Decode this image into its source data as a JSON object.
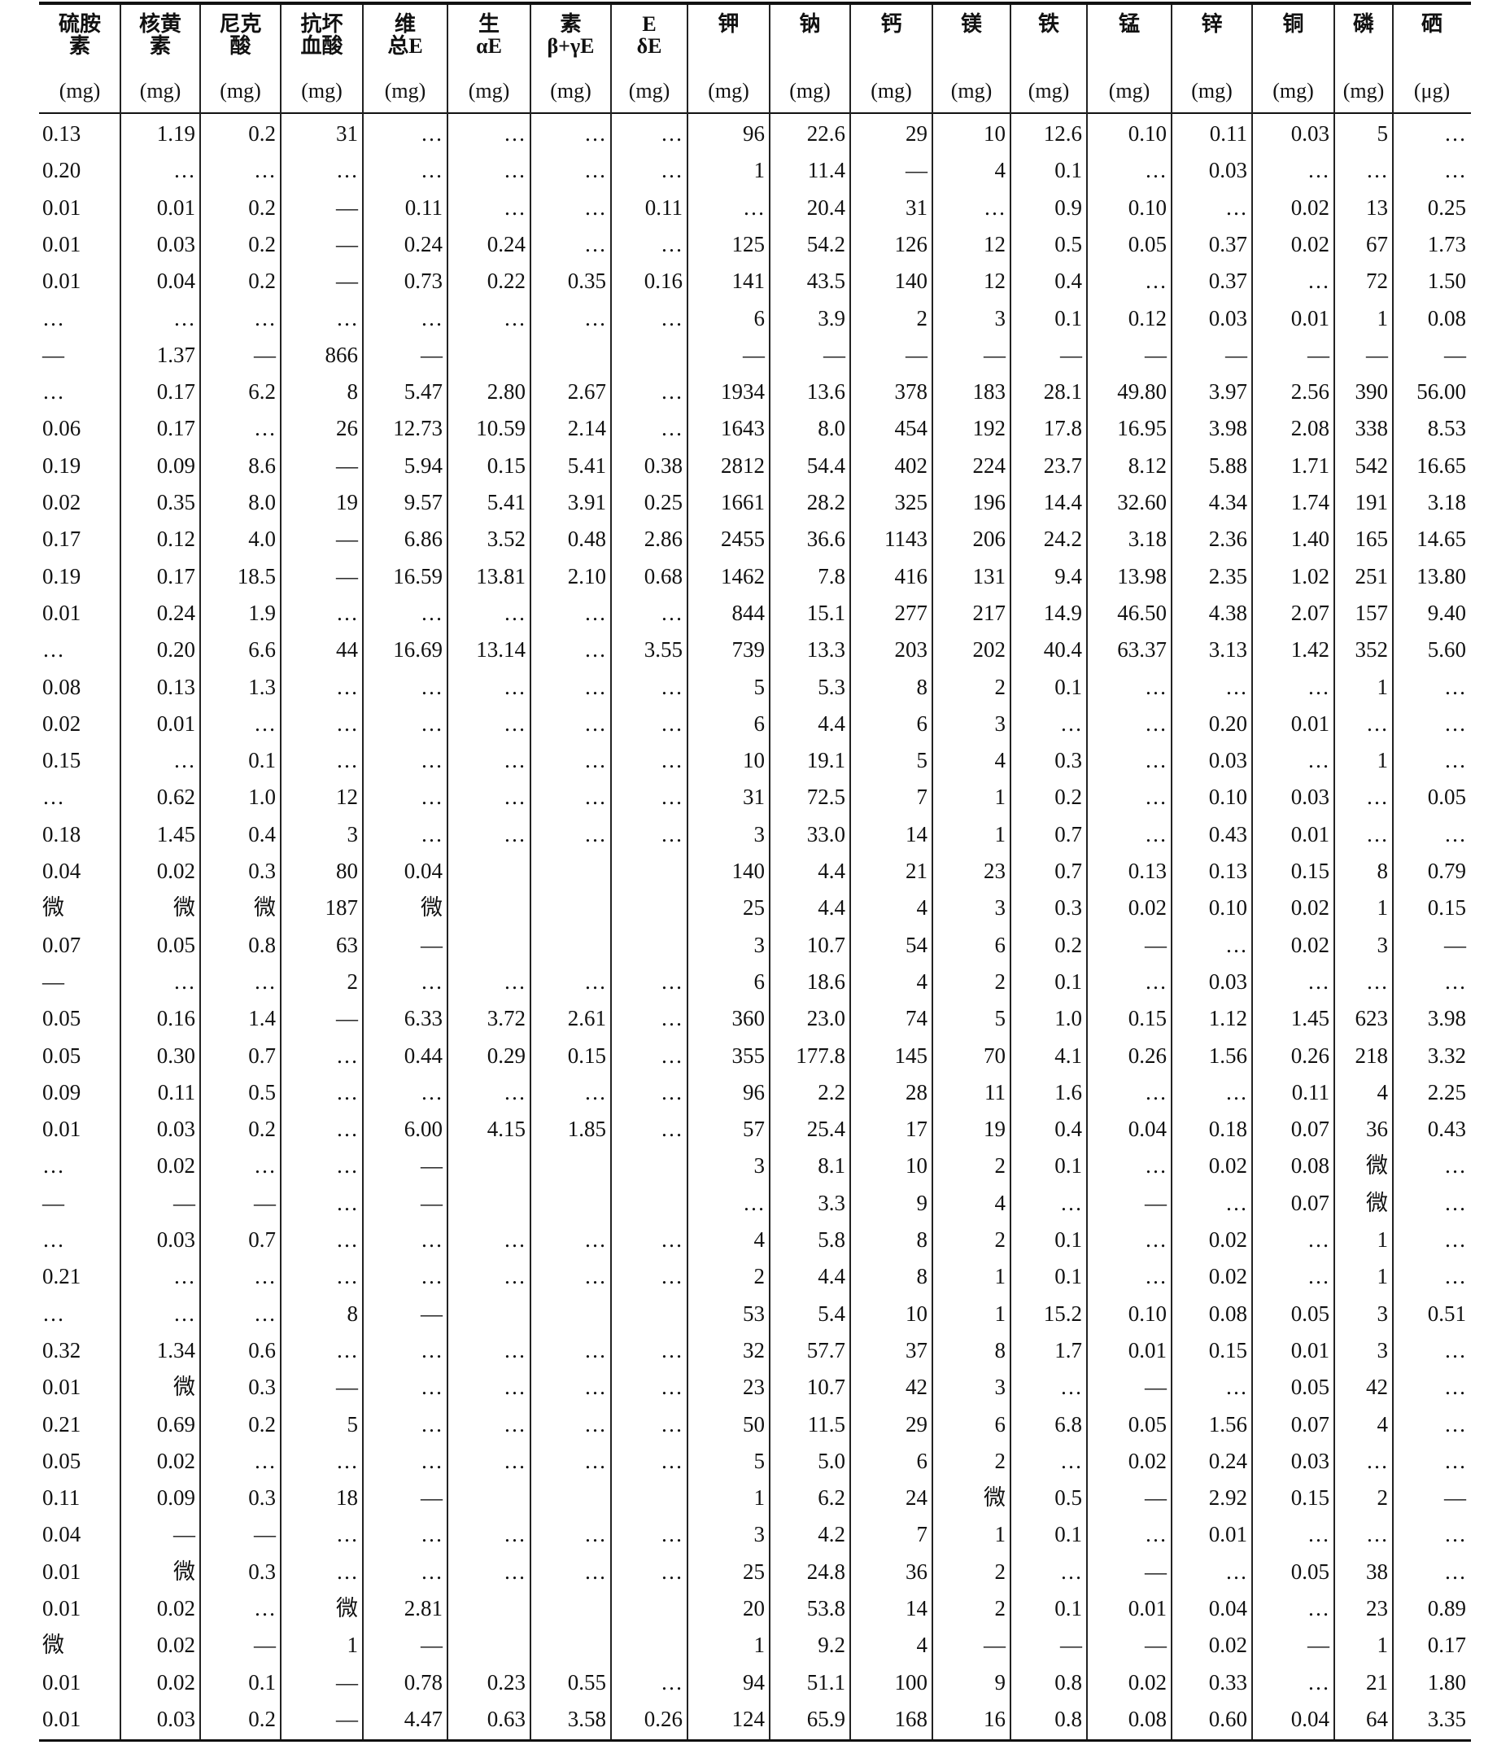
{
  "table": {
    "columns": [
      {
        "lines": [
          "硫胺",
          "素"
        ],
        "unit": "(mg)"
      },
      {
        "lines": [
          "核黄",
          "素"
        ],
        "unit": "(mg)"
      },
      {
        "lines": [
          "尼克",
          "酸"
        ],
        "unit": "(mg)"
      },
      {
        "lines": [
          "抗坏",
          "血酸"
        ],
        "unit": "(mg)"
      },
      {
        "lines": [
          "维",
          "总E"
        ],
        "unit": "(mg)"
      },
      {
        "lines": [
          "生",
          "αE"
        ],
        "unit": "(mg)"
      },
      {
        "lines": [
          "素",
          "β+γE"
        ],
        "unit": "(mg)"
      },
      {
        "lines": [
          "E",
          "δE"
        ],
        "unit": "(mg)"
      },
      {
        "lines": [
          "钾"
        ],
        "unit": "(mg)"
      },
      {
        "lines": [
          "钠"
        ],
        "unit": "(mg)"
      },
      {
        "lines": [
          "钙"
        ],
        "unit": "(mg)"
      },
      {
        "lines": [
          "镁"
        ],
        "unit": "(mg)"
      },
      {
        "lines": [
          "铁"
        ],
        "unit": "(mg)"
      },
      {
        "lines": [
          "锰"
        ],
        "unit": "(mg)"
      },
      {
        "lines": [
          "锌"
        ],
        "unit": "(mg)"
      },
      {
        "lines": [
          "铜"
        ],
        "unit": "(mg)"
      },
      {
        "lines": [
          "磷"
        ],
        "unit": "(mg)"
      },
      {
        "lines": [
          "硒"
        ],
        "unit": "(μg)"
      }
    ],
    "rows": [
      [
        "0.13",
        "1.19",
        "0.2",
        "31",
        "…",
        "…",
        "…",
        "…",
        "96",
        "22.6",
        "29",
        "10",
        "12.6",
        "0.10",
        "0.11",
        "0.03",
        "5",
        "…"
      ],
      [
        "0.20",
        "…",
        "…",
        "…",
        "…",
        "…",
        "…",
        "…",
        "1",
        "11.4",
        "—",
        "4",
        "0.1",
        "…",
        "0.03",
        "…",
        "…",
        "…"
      ],
      [
        "0.01",
        "0.01",
        "0.2",
        "—",
        "0.11",
        "…",
        "…",
        "0.11",
        "…",
        "20.4",
        "31",
        "…",
        "0.9",
        "0.10",
        "…",
        "0.02",
        "13",
        "0.25"
      ],
      [
        "0.01",
        "0.03",
        "0.2",
        "—",
        "0.24",
        "0.24",
        "…",
        "…",
        "125",
        "54.2",
        "126",
        "12",
        "0.5",
        "0.05",
        "0.37",
        "0.02",
        "67",
        "1.73"
      ],
      [
        "0.01",
        "0.04",
        "0.2",
        "—",
        "0.73",
        "0.22",
        "0.35",
        "0.16",
        "141",
        "43.5",
        "140",
        "12",
        "0.4",
        "…",
        "0.37",
        "…",
        "72",
        "1.50"
      ],
      [
        "…",
        "…",
        "…",
        "…",
        "…",
        "…",
        "…",
        "…",
        "6",
        "3.9",
        "2",
        "3",
        "0.1",
        "0.12",
        "0.03",
        "0.01",
        "1",
        "0.08"
      ],
      [
        "—",
        "1.37",
        "—",
        "866",
        "—",
        null,
        null,
        null,
        "—",
        "—",
        "—",
        "—",
        "—",
        "—",
        "—",
        "—",
        "—",
        "—"
      ],
      [
        "…",
        "0.17",
        "6.2",
        "8",
        "5.47",
        "2.80",
        "2.67",
        "…",
        "1934",
        "13.6",
        "378",
        "183",
        "28.1",
        "49.80",
        "3.97",
        "2.56",
        "390",
        "56.00"
      ],
      [
        "0.06",
        "0.17",
        "…",
        "26",
        "12.73",
        "10.59",
        "2.14",
        "…",
        "1643",
        "8.0",
        "454",
        "192",
        "17.8",
        "16.95",
        "3.98",
        "2.08",
        "338",
        "8.53"
      ],
      [
        "0.19",
        "0.09",
        "8.6",
        "—",
        "5.94",
        "0.15",
        "5.41",
        "0.38",
        "2812",
        "54.4",
        "402",
        "224",
        "23.7",
        "8.12",
        "5.88",
        "1.71",
        "542",
        "16.65"
      ],
      [
        "0.02",
        "0.35",
        "8.0",
        "19",
        "9.57",
        "5.41",
        "3.91",
        "0.25",
        "1661",
        "28.2",
        "325",
        "196",
        "14.4",
        "32.60",
        "4.34",
        "1.74",
        "191",
        "3.18"
      ],
      [
        "0.17",
        "0.12",
        "4.0",
        "—",
        "6.86",
        "3.52",
        "0.48",
        "2.86",
        "2455",
        "36.6",
        "1143",
        "206",
        "24.2",
        "3.18",
        "2.36",
        "1.40",
        "165",
        "14.65"
      ],
      [
        "0.19",
        "0.17",
        "18.5",
        "—",
        "16.59",
        "13.81",
        "2.10",
        "0.68",
        "1462",
        "7.8",
        "416",
        "131",
        "9.4",
        "13.98",
        "2.35",
        "1.02",
        "251",
        "13.80"
      ],
      [
        "0.01",
        "0.24",
        "1.9",
        "…",
        "…",
        "…",
        "…",
        "…",
        "844",
        "15.1",
        "277",
        "217",
        "14.9",
        "46.50",
        "4.38",
        "2.07",
        "157",
        "9.40"
      ],
      [
        "…",
        "0.20",
        "6.6",
        "44",
        "16.69",
        "13.14",
        "…",
        "3.55",
        "739",
        "13.3",
        "203",
        "202",
        "40.4",
        "63.37",
        "3.13",
        "1.42",
        "352",
        "5.60"
      ],
      [
        "0.08",
        "0.13",
        "1.3",
        "…",
        "…",
        "…",
        "…",
        "…",
        "5",
        "5.3",
        "8",
        "2",
        "0.1",
        "…",
        "…",
        "…",
        "1",
        "…"
      ],
      [
        "0.02",
        "0.01",
        "…",
        "…",
        "…",
        "…",
        "…",
        "…",
        "6",
        "4.4",
        "6",
        "3",
        "…",
        "…",
        "0.20",
        "0.01",
        "…",
        "…"
      ],
      [
        "0.15",
        "…",
        "0.1",
        "…",
        "…",
        "…",
        "…",
        "…",
        "10",
        "19.1",
        "5",
        "4",
        "0.3",
        "…",
        "0.03",
        "…",
        "1",
        "…"
      ],
      [
        "…",
        "0.62",
        "1.0",
        "12",
        "…",
        "…",
        "…",
        "…",
        "31",
        "72.5",
        "7",
        "1",
        "0.2",
        "…",
        "0.10",
        "0.03",
        "…",
        "0.05"
      ],
      [
        "0.18",
        "1.45",
        "0.4",
        "3",
        "…",
        "…",
        "…",
        "…",
        "3",
        "33.0",
        "14",
        "1",
        "0.7",
        "…",
        "0.43",
        "0.01",
        "…",
        "…"
      ],
      [
        "0.04",
        "0.02",
        "0.3",
        "80",
        "0.04",
        null,
        null,
        null,
        "140",
        "4.4",
        "21",
        "23",
        "0.7",
        "0.13",
        "0.13",
        "0.15",
        "8",
        "0.79"
      ],
      [
        "微",
        "微",
        "微",
        "187",
        "微",
        null,
        null,
        null,
        "25",
        "4.4",
        "4",
        "3",
        "0.3",
        "0.02",
        "0.10",
        "0.02",
        "1",
        "0.15"
      ],
      [
        "0.07",
        "0.05",
        "0.8",
        "63",
        "—",
        null,
        null,
        null,
        "3",
        "10.7",
        "54",
        "6",
        "0.2",
        "—",
        "…",
        "0.02",
        "3",
        "—"
      ],
      [
        "—",
        "…",
        "…",
        "2",
        "…",
        "…",
        "…",
        "…",
        "6",
        "18.6",
        "4",
        "2",
        "0.1",
        "…",
        "0.03",
        "…",
        "…",
        "…"
      ],
      [
        "0.05",
        "0.16",
        "1.4",
        "—",
        "6.33",
        "3.72",
        "2.61",
        "…",
        "360",
        "23.0",
        "74",
        "5",
        "1.0",
        "0.15",
        "1.12",
        "1.45",
        "623",
        "3.98"
      ],
      [
        "0.05",
        "0.30",
        "0.7",
        "…",
        "0.44",
        "0.29",
        "0.15",
        "…",
        "355",
        "177.8",
        "145",
        "70",
        "4.1",
        "0.26",
        "1.56",
        "0.26",
        "218",
        "3.32"
      ],
      [
        "0.09",
        "0.11",
        "0.5",
        "…",
        "…",
        "…",
        "…",
        "…",
        "96",
        "2.2",
        "28",
        "11",
        "1.6",
        "…",
        "…",
        "0.11",
        "4",
        "2.25"
      ],
      [
        "0.01",
        "0.03",
        "0.2",
        "…",
        "6.00",
        "4.15",
        "1.85",
        "…",
        "57",
        "25.4",
        "17",
        "19",
        "0.4",
        "0.04",
        "0.18",
        "0.07",
        "36",
        "0.43"
      ],
      [
        "…",
        "0.02",
        "…",
        "…",
        "—",
        null,
        null,
        null,
        "3",
        "8.1",
        "10",
        "2",
        "0.1",
        "…",
        "0.02",
        "0.08",
        "微",
        "…"
      ],
      [
        "—",
        "—",
        "—",
        "…",
        "—",
        null,
        null,
        null,
        "…",
        "3.3",
        "9",
        "4",
        "…",
        "—",
        "…",
        "0.07",
        "微",
        "…"
      ],
      [
        "…",
        "0.03",
        "0.7",
        "…",
        "…",
        "…",
        "…",
        "…",
        "4",
        "5.8",
        "8",
        "2",
        "0.1",
        "…",
        "0.02",
        "…",
        "1",
        "…"
      ],
      [
        "0.21",
        "…",
        "…",
        "…",
        "…",
        "…",
        "…",
        "…",
        "2",
        "4.4",
        "8",
        "1",
        "0.1",
        "…",
        "0.02",
        "…",
        "1",
        "…"
      ],
      [
        "…",
        "…",
        "…",
        "8",
        "—",
        null,
        null,
        null,
        "53",
        "5.4",
        "10",
        "1",
        "15.2",
        "0.10",
        "0.08",
        "0.05",
        "3",
        "0.51"
      ],
      [
        "0.32",
        "1.34",
        "0.6",
        "…",
        "…",
        "…",
        "…",
        "…",
        "32",
        "57.7",
        "37",
        "8",
        "1.7",
        "0.01",
        "0.15",
        "0.01",
        "3",
        "…"
      ],
      [
        "0.01",
        "微",
        "0.3",
        "—",
        "…",
        "…",
        "…",
        "…",
        "23",
        "10.7",
        "42",
        "3",
        "…",
        "—",
        "…",
        "0.05",
        "42",
        "…"
      ],
      [
        "0.21",
        "0.69",
        "0.2",
        "5",
        "…",
        "…",
        "…",
        "…",
        "50",
        "11.5",
        "29",
        "6",
        "6.8",
        "0.05",
        "1.56",
        "0.07",
        "4",
        "…"
      ],
      [
        "0.05",
        "0.02",
        "…",
        "…",
        "…",
        "…",
        "…",
        "…",
        "5",
        "5.0",
        "6",
        "2",
        "…",
        "0.02",
        "0.24",
        "0.03",
        "…",
        "…"
      ],
      [
        "0.11",
        "0.09",
        "0.3",
        "18",
        "—",
        null,
        null,
        null,
        "1",
        "6.2",
        "24",
        "微",
        "0.5",
        "—",
        "2.92",
        "0.15",
        "2",
        "—"
      ],
      [
        "0.04",
        "—",
        "—",
        "…",
        "…",
        "…",
        "…",
        "…",
        "3",
        "4.2",
        "7",
        "1",
        "0.1",
        "…",
        "0.01",
        "…",
        "…",
        "…"
      ],
      [
        "0.01",
        "微",
        "0.3",
        "…",
        "…",
        "…",
        "…",
        "…",
        "25",
        "24.8",
        "36",
        "2",
        "…",
        "—",
        "…",
        "0.05",
        "38",
        "…"
      ],
      [
        "0.01",
        "0.02",
        "…",
        "微",
        "2.81",
        null,
        null,
        null,
        "20",
        "53.8",
        "14",
        "2",
        "0.1",
        "0.01",
        "0.04",
        "…",
        "23",
        "0.89"
      ],
      [
        "微",
        "0.02",
        "—",
        "1",
        "—",
        null,
        null,
        null,
        "1",
        "9.2",
        "4",
        "—",
        "—",
        "—",
        "0.02",
        "—",
        "1",
        "0.17"
      ],
      [
        "0.01",
        "0.02",
        "0.1",
        "—",
        "0.78",
        "0.23",
        "0.55",
        "…",
        "94",
        "51.1",
        "100",
        "9",
        "0.8",
        "0.02",
        "0.33",
        "…",
        "21",
        "1.80"
      ],
      [
        "0.01",
        "0.03",
        "0.2",
        "—",
        "4.47",
        "0.63",
        "3.58",
        "0.26",
        "124",
        "65.9",
        "168",
        "16",
        "0.8",
        "0.08",
        "0.60",
        "0.04",
        "64",
        "3.35"
      ]
    ]
  }
}
